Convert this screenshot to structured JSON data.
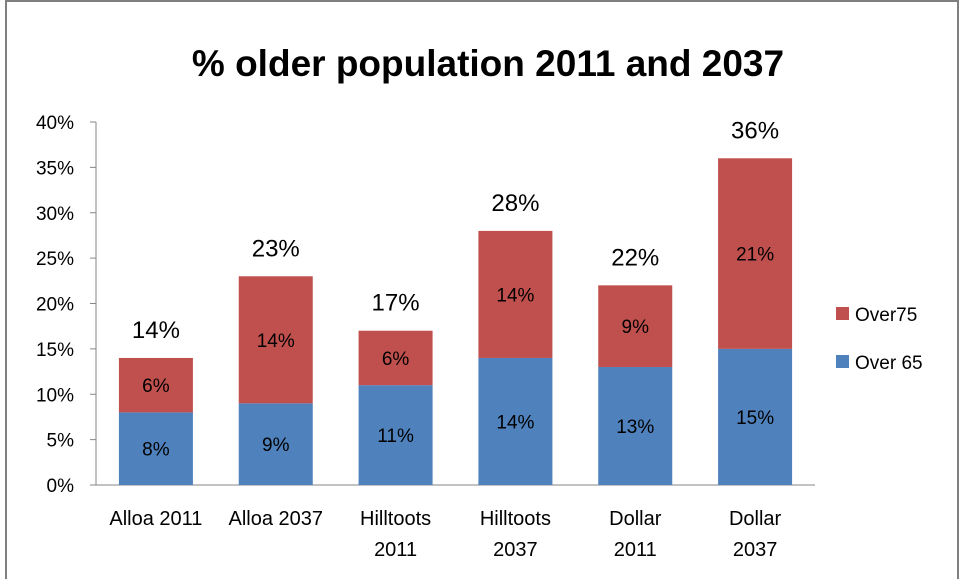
{
  "chart_data": {
    "type": "bar",
    "stacked": true,
    "title": "% older population 2011 and 2037",
    "categories": [
      "Alloa 2011",
      "Alloa 2037",
      "Hilltoots 2011",
      "Hilltoots 2037",
      "Dollar 2011",
      "Dollar 2037"
    ],
    "category_lines": [
      [
        "Alloa 2011"
      ],
      [
        "Alloa 2037"
      ],
      [
        "Hilltoots",
        "2011"
      ],
      [
        "Hilltoots",
        "2037"
      ],
      [
        "Dollar",
        "2011"
      ],
      [
        "Dollar",
        "2037"
      ]
    ],
    "series": [
      {
        "name": "Over 65",
        "color": "#4f81bd",
        "values": [
          8,
          9,
          11,
          14,
          13,
          15
        ],
        "labels": [
          "8%",
          "9%",
          "11%",
          "14%",
          "13%",
          "15%"
        ]
      },
      {
        "name": "Over75",
        "color": "#c0504d",
        "values": [
          6,
          14,
          6,
          14,
          9,
          21
        ],
        "labels": [
          "6%",
          "14%",
          "6%",
          "14%",
          "9%",
          "21%"
        ]
      }
    ],
    "totals": [
      "14%",
      "23%",
      "17%",
      "28%",
      "22%",
      "36%"
    ],
    "totals_values": [
      14,
      23,
      17,
      28,
      22,
      36
    ],
    "ylim": [
      0,
      40
    ],
    "ytick_step": 5,
    "yticks": [
      "0%",
      "5%",
      "10%",
      "15%",
      "20%",
      "25%",
      "30%",
      "35%",
      "40%"
    ],
    "legend_position": "right",
    "legend": [
      {
        "name": "Over75",
        "color": "#c0504d"
      },
      {
        "name": "Over 65",
        "color": "#4f81bd"
      }
    ],
    "grid": false
  }
}
